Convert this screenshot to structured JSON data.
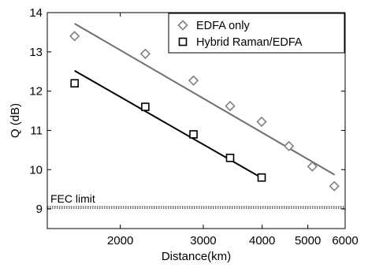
{
  "chart_data": {
    "type": "scatter",
    "xlabel": "Distance(km)",
    "ylabel": "Q (dB)",
    "x_scale": "log",
    "xlim": [
      1400,
      6000
    ],
    "ylim": [
      8.5,
      14
    ],
    "x_ticks": [
      2000,
      3000,
      4000,
      5000,
      6000
    ],
    "x_tick_labels": [
      "2000",
      "3000",
      "4000",
      "5000",
      "6000"
    ],
    "y_ticks": [
      9,
      10,
      11,
      12,
      13,
      14
    ],
    "y_tick_labels": [
      "9",
      "10",
      "11",
      "12",
      "13",
      "14"
    ],
    "legend_position": "top-right",
    "grid": false,
    "series": [
      {
        "name": "EDFA only",
        "marker": "diamond",
        "color": "#808080",
        "x": [
          1600,
          2260,
          2860,
          3420,
          3990,
          4560,
          5110,
          5690
        ],
        "y": [
          13.4,
          12.95,
          12.27,
          11.62,
          11.22,
          10.6,
          10.08,
          9.58
        ],
        "fit": {
          "color": "#6e6e6e",
          "x": [
            1600,
            5700
          ],
          "y": [
            13.72,
            9.87
          ]
        }
      },
      {
        "name": "Hybrid Raman/EDFA",
        "marker": "square",
        "color": "#000000",
        "x": [
          1600,
          2260,
          2860,
          3420,
          3990
        ],
        "y": [
          12.2,
          11.6,
          10.9,
          10.3,
          9.8
        ],
        "fit": {
          "color": "#000000",
          "x": [
            1600,
            3990
          ],
          "y": [
            12.52,
            9.79
          ]
        }
      }
    ],
    "reference_line": {
      "label": "FEC limit",
      "y": 9.04,
      "style": "dotted"
    }
  }
}
